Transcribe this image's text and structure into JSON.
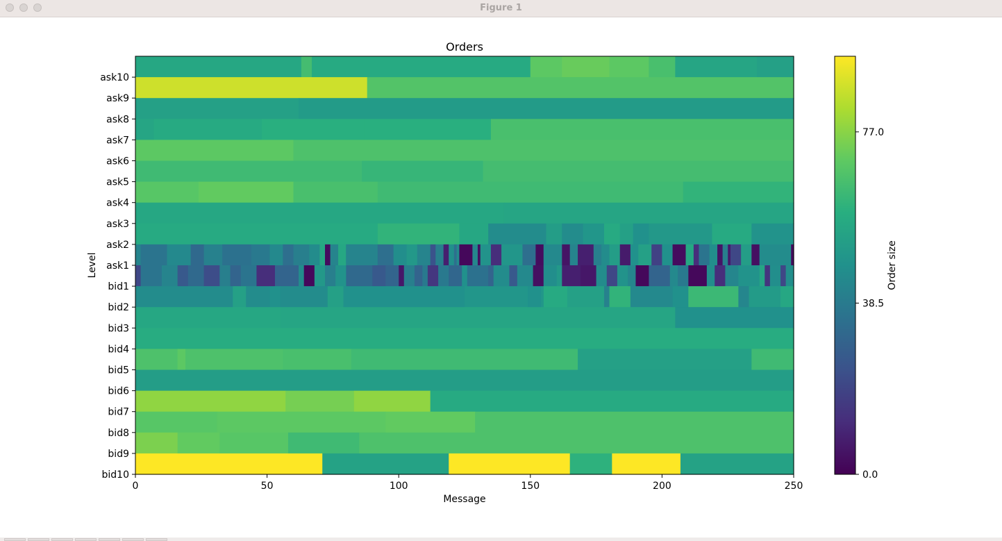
{
  "window": {
    "title": "Figure 1"
  },
  "chart_data": {
    "type": "heatmap",
    "title": "Orders",
    "xlabel": "Message",
    "ylabel": "Level",
    "xlim": [
      0,
      250
    ],
    "x_ticks": [
      0,
      50,
      100,
      150,
      200,
      250
    ],
    "x_tick_labels": [
      "0",
      "50",
      "100",
      "150",
      "200",
      "250"
    ],
    "levels": [
      "ask10",
      "ask9",
      "ask8",
      "ask7",
      "ask6",
      "ask5",
      "ask4",
      "ask3",
      "ask2",
      "ask1",
      "bid1",
      "bid2",
      "bid3",
      "bid4",
      "bid5",
      "bid6",
      "bid7",
      "bid8",
      "bid9",
      "bid10"
    ],
    "colormap": "viridis",
    "colorbar": {
      "label": "Order size",
      "min": 0.0,
      "max": 94,
      "ticks": [
        0.0,
        38.5,
        77.0
      ],
      "tick_labels": [
        "0.0",
        "38.5",
        "77.0"
      ]
    },
    "rows": [
      [
        [
          0,
          63,
          56
        ],
        [
          63,
          67,
          65
        ],
        [
          67,
          150,
          57
        ],
        [
          150,
          162,
          70
        ],
        [
          162,
          180,
          72
        ],
        [
          180,
          195,
          70
        ],
        [
          195,
          205,
          66
        ],
        [
          205,
          236,
          55
        ],
        [
          236,
          250,
          53
        ]
      ],
      [
        [
          0,
          88,
          87
        ],
        [
          88,
          250,
          68
        ]
      ],
      [
        [
          0,
          62,
          53
        ],
        [
          62,
          250,
          51
        ]
      ],
      [
        [
          0,
          7,
          55
        ],
        [
          7,
          48,
          57
        ],
        [
          48,
          87,
          59
        ],
        [
          87,
          135,
          59
        ],
        [
          135,
          250,
          66
        ]
      ],
      [
        [
          0,
          60,
          70
        ],
        [
          60,
          250,
          67
        ]
      ],
      [
        [
          0,
          86,
          64
        ],
        [
          86,
          132,
          62
        ],
        [
          132,
          250,
          65
        ]
      ],
      [
        [
          0,
          24,
          69
        ],
        [
          24,
          60,
          71
        ],
        [
          60,
          92,
          66
        ],
        [
          92,
          208,
          64
        ],
        [
          208,
          250,
          61
        ]
      ],
      [
        [
          0,
          140,
          56
        ],
        [
          140,
          250,
          55
        ]
      ],
      [
        [
          0,
          92,
          57
        ],
        [
          92,
          123,
          61
        ],
        [
          123,
          134,
          56
        ],
        [
          134,
          156,
          45
        ],
        [
          156,
          162,
          52
        ],
        [
          162,
          170,
          45
        ],
        [
          170,
          178,
          49
        ],
        [
          178,
          184,
          57
        ],
        [
          184,
          189,
          53
        ],
        [
          189,
          195,
          47
        ],
        [
          195,
          219,
          50
        ],
        [
          219,
          234,
          57
        ],
        [
          234,
          250,
          48
        ]
      ],
      [
        [
          0,
          2,
          42
        ],
        [
          2,
          12,
          36
        ],
        [
          12,
          21,
          44
        ],
        [
          21,
          26,
          32
        ],
        [
          26,
          33,
          41
        ],
        [
          33,
          44,
          35
        ],
        [
          44,
          51,
          38
        ],
        [
          51,
          56,
          44
        ],
        [
          56,
          60,
          34
        ],
        [
          60,
          66,
          40
        ],
        [
          66,
          70,
          45
        ],
        [
          70,
          72,
          56
        ],
        [
          72,
          74,
          3
        ],
        [
          74,
          77,
          42
        ],
        [
          77,
          80,
          56
        ],
        [
          80,
          90,
          38
        ],
        [
          80,
          92,
          42
        ],
        [
          92,
          98,
          34
        ],
        [
          98,
          103,
          46
        ],
        [
          103,
          107,
          50
        ],
        [
          107,
          112,
          42
        ],
        [
          112,
          114,
          24
        ],
        [
          114,
          117,
          40
        ],
        [
          117,
          119,
          8
        ],
        [
          119,
          121,
          46
        ],
        [
          121,
          122,
          34
        ],
        [
          122,
          123,
          44
        ],
        [
          123,
          128,
          2
        ],
        [
          128,
          130,
          43
        ],
        [
          130,
          131,
          4
        ],
        [
          131,
          135,
          48
        ],
        [
          135,
          139,
          12
        ],
        [
          139,
          147,
          49
        ],
        [
          147,
          152,
          34
        ],
        [
          152,
          155,
          3
        ],
        [
          155,
          162,
          44
        ],
        [
          162,
          165,
          5
        ],
        [
          165,
          168,
          42
        ],
        [
          168,
          174,
          8
        ],
        [
          174,
          177,
          40
        ],
        [
          177,
          180,
          45
        ],
        [
          180,
          184,
          52
        ],
        [
          184,
          188,
          7
        ],
        [
          188,
          191,
          47
        ],
        [
          191,
          196,
          53
        ],
        [
          196,
          200,
          18
        ],
        [
          200,
          204,
          47
        ],
        [
          204,
          209,
          3
        ],
        [
          209,
          212,
          56
        ],
        [
          212,
          214,
          12
        ],
        [
          214,
          218,
          36
        ],
        [
          218,
          221,
          46
        ],
        [
          221,
          223,
          5
        ],
        [
          223,
          225,
          40
        ],
        [
          225,
          226,
          7
        ],
        [
          226,
          230,
          20
        ],
        [
          230,
          234,
          52
        ],
        [
          234,
          237,
          4
        ],
        [
          237,
          249,
          45
        ],
        [
          249,
          252,
          3
        ]
      ],
      [
        [
          0,
          2,
          20
        ],
        [
          2,
          10,
          36
        ],
        [
          10,
          16,
          42
        ],
        [
          16,
          20,
          26
        ],
        [
          20,
          26,
          32
        ],
        [
          26,
          32,
          22
        ],
        [
          32,
          36,
          40
        ],
        [
          36,
          40,
          30
        ],
        [
          40,
          46,
          36
        ],
        [
          46,
          53,
          12
        ],
        [
          53,
          62,
          30
        ],
        [
          62,
          64,
          45
        ],
        [
          64,
          68,
          2
        ],
        [
          68,
          72,
          50
        ],
        [
          72,
          76,
          40
        ],
        [
          76,
          80,
          48
        ],
        [
          80,
          90,
          32
        ],
        [
          90,
          95,
          26
        ],
        [
          95,
          98,
          30
        ],
        [
          98,
          100,
          30
        ],
        [
          100,
          102,
          6
        ],
        [
          102,
          106,
          40
        ],
        [
          106,
          109,
          30
        ],
        [
          109,
          111,
          38
        ],
        [
          111,
          115,
          15
        ],
        [
          115,
          119,
          38
        ],
        [
          119,
          124,
          31
        ],
        [
          124,
          126,
          47
        ],
        [
          126,
          134,
          35
        ],
        [
          134,
          136,
          30
        ],
        [
          136,
          142,
          45
        ],
        [
          142,
          145,
          26
        ],
        [
          145,
          151,
          44
        ],
        [
          151,
          155,
          4
        ],
        [
          155,
          160,
          46
        ],
        [
          160,
          162,
          50
        ],
        [
          162,
          169,
          8
        ],
        [
          169,
          175,
          6
        ],
        [
          175,
          179,
          45
        ],
        [
          179,
          183,
          20
        ],
        [
          183,
          187,
          48
        ],
        [
          187,
          190,
          43
        ],
        [
          190,
          195,
          2
        ],
        [
          195,
          203,
          30
        ],
        [
          203,
          206,
          44
        ],
        [
          206,
          210,
          38
        ],
        [
          210,
          217,
          2
        ],
        [
          217,
          220,
          46
        ],
        [
          220,
          224,
          12
        ],
        [
          224,
          229,
          43
        ],
        [
          229,
          237,
          48
        ],
        [
          237,
          239,
          55
        ],
        [
          239,
          241,
          14
        ],
        [
          241,
          245,
          46
        ],
        [
          245,
          247,
          20
        ],
        [
          247,
          250,
          46
        ]
      ],
      [
        [
          0,
          37,
          45
        ],
        [
          37,
          42,
          53
        ],
        [
          42,
          51,
          45
        ],
        [
          51,
          55,
          47
        ],
        [
          55,
          73,
          45
        ],
        [
          73,
          79,
          53
        ],
        [
          79,
          125,
          47
        ],
        [
          125,
          149,
          49
        ],
        [
          149,
          154,
          47
        ],
        [
          154,
          155,
          49
        ],
        [
          155,
          164,
          57
        ],
        [
          164,
          178,
          53
        ],
        [
          178,
          180,
          41
        ],
        [
          180,
          188,
          61
        ],
        [
          188,
          204,
          44
        ],
        [
          204,
          210,
          47
        ],
        [
          210,
          229,
          63
        ],
        [
          229,
          233,
          43
        ],
        [
          233,
          245,
          51
        ],
        [
          245,
          250,
          56
        ]
      ],
      [
        [
          0,
          55,
          56
        ],
        [
          55,
          205,
          55
        ],
        [
          205,
          250,
          47
        ]
      ],
      [
        [
          0,
          250,
          58
        ]
      ],
      [
        [
          0,
          16,
          67
        ],
        [
          16,
          19,
          70
        ],
        [
          19,
          56,
          67
        ],
        [
          56,
          82,
          66
        ],
        [
          82,
          168,
          64
        ],
        [
          168,
          234,
          53
        ],
        [
          234,
          250,
          64
        ]
      ],
      [
        [
          0,
          250,
          52
        ]
      ],
      [
        [
          0,
          57,
          78
        ],
        [
          57,
          83,
          74
        ],
        [
          83,
          112,
          78
        ],
        [
          112,
          250,
          57
        ]
      ],
      [
        [
          0,
          31,
          69
        ],
        [
          31,
          95,
          70
        ],
        [
          95,
          129,
          71
        ],
        [
          129,
          250,
          67
        ]
      ],
      [
        [
          0,
          16,
          75
        ],
        [
          16,
          32,
          71
        ],
        [
          32,
          58,
          69
        ],
        [
          58,
          85,
          64
        ],
        [
          85,
          250,
          67
        ]
      ],
      [
        [
          0,
          71,
          94
        ],
        [
          71,
          119,
          54
        ],
        [
          119,
          165,
          94
        ],
        [
          165,
          181,
          60
        ],
        [
          181,
          207,
          94
        ],
        [
          207,
          250,
          54
        ]
      ]
    ]
  }
}
